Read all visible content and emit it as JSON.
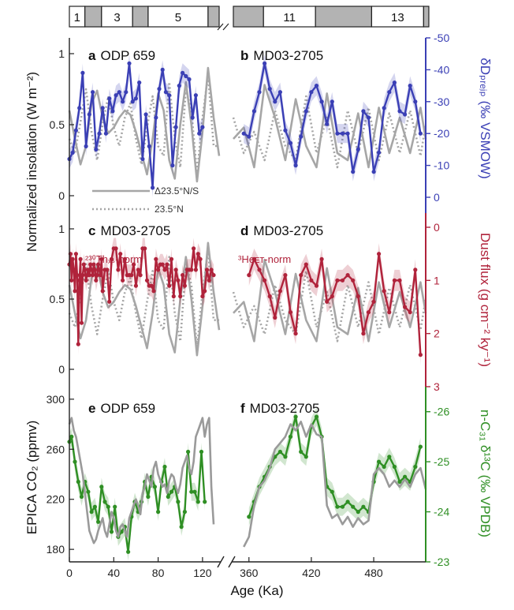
{
  "figure": {
    "x_axis_label": "Age (Ka)",
    "left_axis_label_top": "Normalized insolation (W m⁻²)",
    "left_axis_label_bottom": "EPICA CO₂ (ppmv)",
    "right_axis_label_top": "δDₚᵣₑⱼₚ (‰ VSMOW)",
    "right_axis_label_mid": "Dust flux (g cm⁻² ky⁻¹)",
    "right_axis_label_bottom": "n-C₃₁ δ¹³C (‰ VPDB)",
    "colors": {
      "insolation": "#a6a6a6",
      "dD": "#3a3fb5",
      "dust": "#b0233b",
      "d13C": "#2f8f24",
      "co2": "#9a9a9a"
    }
  },
  "mis_bar": {
    "left": [
      {
        "label": "1",
        "start": 0,
        "end": 14,
        "shaded": false
      },
      {
        "label": "",
        "start": 14,
        "end": 29,
        "shaded": true
      },
      {
        "label": "3",
        "start": 29,
        "end": 57,
        "shaded": false
      },
      {
        "label": "",
        "start": 57,
        "end": 71,
        "shaded": true
      },
      {
        "label": "5",
        "start": 71,
        "end": 125,
        "shaded": false
      },
      {
        "label": "",
        "start": 125,
        "end": 135,
        "shaded": true
      }
    ],
    "right": [
      {
        "label": "",
        "start": 340,
        "end": 374,
        "shaded": true
      },
      {
        "label": "11",
        "start": 374,
        "end": 424,
        "shaded": false
      },
      {
        "label": "",
        "start": 424,
        "end": 478,
        "shaded": true
      },
      {
        "label": "13",
        "start": 478,
        "end": 528,
        "shaded": false
      },
      {
        "label": "",
        "start": 528,
        "end": 533,
        "shaded": true
      }
    ]
  },
  "panels": {
    "a": {
      "letter": "a",
      "site": "ODP 659"
    },
    "b": {
      "letter": "b",
      "site": "MD03-2705"
    },
    "c": {
      "letter": "c",
      "site": "MD03-2705",
      "note": "²³⁰Thₓₛ-norm"
    },
    "d": {
      "letter": "d",
      "site": "MD03-2705",
      "note": "³Heᴇᴛ-norm"
    },
    "e": {
      "letter": "e",
      "site": "ODP 659"
    },
    "f": {
      "letter": "f",
      "site": "MD03-2705"
    }
  },
  "legend": {
    "solid": "Δ23.5°N/S",
    "dotted": "23.5°N"
  },
  "chart_data": {
    "type": "line",
    "x_axis": {
      "label": "Age (Ka)",
      "left_segment": {
        "range": [
          0,
          135
        ],
        "ticks": [
          0,
          40,
          80,
          120
        ]
      },
      "right_segment": {
        "range": [
          345,
          530
        ],
        "ticks": [
          360,
          420,
          480
        ]
      }
    },
    "insolation_axis": {
      "range": [
        0,
        1
      ],
      "ticks": [
        0,
        0.5,
        1
      ],
      "tick_labels": [
        "0",
        "0.5",
        "1"
      ]
    },
    "dD_axis": {
      "range": [
        0,
        -50
      ],
      "ticks": [
        0,
        -10,
        -20,
        -30,
        -40,
        -50
      ]
    },
    "dust_axis": {
      "range": [
        3,
        0
      ],
      "ticks": [
        0,
        1,
        2,
        3
      ]
    },
    "co2_axis": {
      "range": [
        170,
        310
      ],
      "ticks": [
        180,
        220,
        260,
        300
      ]
    },
    "d13C_axis": {
      "range": [
        -23,
        -26.5
      ],
      "ticks": [
        -23,
        -24,
        -25,
        -26
      ]
    },
    "insolation_solid": {
      "name": "Δ23.5°N/S",
      "left": {
        "x": [
          0,
          5,
          10,
          15,
          20,
          25,
          30,
          35,
          40,
          45,
          50,
          55,
          60,
          65,
          70,
          75,
          80,
          85,
          90,
          95,
          100,
          105,
          110,
          115,
          120,
          125,
          130,
          135
        ],
        "y": [
          0.6,
          0.4,
          0.22,
          0.35,
          0.65,
          0.74,
          0.55,
          0.44,
          0.48,
          0.55,
          0.6,
          0.57,
          0.45,
          0.3,
          0.15,
          0.4,
          0.72,
          0.6,
          0.25,
          0.12,
          0.5,
          0.8,
          0.5,
          0.1,
          0.45,
          0.9,
          0.55,
          0.28
        ]
      },
      "right": {
        "x": [
          345,
          355,
          365,
          375,
          385,
          395,
          405,
          415,
          425,
          435,
          445,
          455,
          465,
          475,
          485,
          495,
          505,
          515,
          525,
          530
        ],
        "y": [
          0.4,
          0.48,
          0.2,
          0.78,
          0.55,
          0.25,
          0.68,
          0.35,
          0.2,
          0.72,
          0.3,
          0.25,
          0.58,
          0.2,
          0.62,
          0.3,
          0.55,
          0.3,
          0.62,
          0.4
        ]
      }
    },
    "insolation_dotted": {
      "name": "23.5°N",
      "left": {
        "x": [
          0,
          5,
          10,
          15,
          20,
          25,
          30,
          35,
          40,
          45,
          50,
          55,
          60,
          65,
          70,
          75,
          80,
          85,
          90,
          95,
          100,
          105,
          110,
          115,
          120,
          125,
          130,
          135
        ],
        "y": [
          0.4,
          0.3,
          0.52,
          0.75,
          0.45,
          0.25,
          0.5,
          0.7,
          0.48,
          0.35,
          0.55,
          0.65,
          0.4,
          0.22,
          0.48,
          0.7,
          0.35,
          0.28,
          0.8,
          0.4,
          0.2,
          0.75,
          0.6,
          0.15,
          0.55,
          0.85,
          0.35,
          0.35
        ]
      },
      "right": {
        "x": [
          345,
          355,
          365,
          375,
          385,
          395,
          405,
          415,
          425,
          435,
          445,
          455,
          465,
          475,
          485,
          495,
          505,
          515,
          525,
          530
        ],
        "y": [
          0.55,
          0.3,
          0.45,
          0.25,
          0.6,
          0.35,
          0.25,
          0.7,
          0.3,
          0.55,
          0.2,
          0.6,
          0.3,
          0.62,
          0.25,
          0.58,
          0.3,
          0.6,
          0.28,
          0.5
        ]
      }
    },
    "series": [
      {
        "panel": "a",
        "axis": "dD",
        "x": [
          0,
          3,
          6,
          9,
          12,
          15,
          18,
          21,
          24,
          27,
          30,
          33,
          36,
          39,
          42,
          45,
          48,
          51,
          54,
          57,
          60,
          63,
          66,
          69,
          72,
          75,
          78,
          81,
          84,
          87,
          90,
          93,
          96,
          99,
          102,
          105,
          108,
          111,
          114,
          117,
          120
        ],
        "y": [
          -12,
          -14,
          -21,
          -28,
          -39,
          -16,
          -26,
          -33,
          -15,
          -20,
          -28,
          -20,
          -31,
          -27,
          -32,
          -33,
          -30,
          -33,
          -42,
          -30,
          -31,
          -36,
          -12,
          -26,
          -16,
          -3,
          -25,
          -34,
          -40,
          -33,
          -32,
          -10,
          -22,
          -35,
          -39,
          -38,
          -37,
          -25,
          -32,
          -20,
          -22
        ]
      },
      {
        "panel": "b",
        "axis": "dD",
        "x": [
          355,
          360,
          365,
          370,
          375,
          380,
          385,
          390,
          395,
          400,
          405,
          410,
          415,
          420,
          425,
          430,
          435,
          440,
          445,
          450,
          455,
          460,
          465,
          470,
          475,
          480,
          485,
          490,
          495,
          500,
          505,
          510,
          515,
          520,
          525
        ],
        "y": [
          -20,
          -19,
          -27,
          -33,
          -42,
          -34,
          -30,
          -33,
          -21,
          -17,
          -10,
          -19,
          -27,
          -33,
          -35,
          -30,
          -23,
          -30,
          -20,
          -20,
          -20,
          -8,
          -15,
          -27,
          -25,
          -8,
          -14,
          -28,
          -33,
          -36,
          -27,
          -26,
          -35,
          -30,
          -20
        ]
      },
      {
        "panel": "c",
        "axis": "dust",
        "x": [
          0,
          1,
          2,
          3,
          4,
          5,
          6,
          7,
          8,
          9,
          10,
          11,
          12,
          13,
          14,
          15,
          16,
          17,
          18,
          19,
          20,
          21,
          22,
          23,
          24,
          25,
          26,
          27,
          28,
          29,
          30,
          32,
          34,
          36,
          38,
          40,
          42,
          44,
          46,
          48,
          50,
          52,
          54,
          56,
          58,
          60,
          62,
          64,
          66,
          68,
          70,
          72,
          74,
          76,
          78,
          80,
          82,
          84,
          86,
          88,
          90,
          92,
          94,
          96,
          98,
          100,
          102,
          104,
          106,
          108,
          110,
          112,
          114,
          116,
          118,
          120,
          122,
          124,
          126,
          128,
          130
        ],
        "y": [
          0.7,
          0.5,
          1.0,
          0.6,
          0.8,
          1.2,
          0.5,
          0.9,
          2.2,
          1.0,
          0.6,
          1.8,
          0.9,
          0.7,
          0.8,
          1.0,
          0.9,
          0.8,
          0.9,
          0.7,
          0.8,
          0.9,
          0.7,
          0.8,
          1.0,
          0.9,
          0.7,
          0.8,
          0.9,
          0.6,
          1.2,
          0.8,
          0.8,
          1.4,
          0.6,
          0.4,
          0.4,
          0.8,
          0.5,
          1.0,
          0.6,
          0.9,
          0.9,
          0.9,
          0.7,
          1.1,
          0.8,
          0.9,
          0.4,
          0.4,
          1.0,
          1.1,
          1.1,
          1.2,
          0.6,
          0.8,
          0.7,
          0.7,
          0.8,
          0.7,
          1.1,
          0.6,
          1.3,
          0.8,
          1.0,
          1.3,
          0.9,
          1.1,
          0.8,
          0.8,
          0.8,
          0.4,
          0.8,
          0.5,
          0.6,
          1.3,
          1.2,
          0.8,
          1.0,
          0.8,
          0.9
        ]
      },
      {
        "panel": "d",
        "axis": "dust",
        "x": [
          360,
          365,
          370,
          375,
          380,
          385,
          390,
          395,
          400,
          405,
          410,
          415,
          420,
          425,
          430,
          435,
          440,
          445,
          450,
          455,
          460,
          465,
          470,
          475,
          480,
          485,
          490,
          495,
          500,
          505,
          510,
          515,
          520,
          525
        ],
        "y": [
          0.9,
          0.6,
          0.8,
          1.0,
          1.3,
          1.7,
          1.2,
          0.9,
          1.6,
          2.0,
          0.9,
          0.7,
          1.0,
          1.1,
          0.6,
          1.4,
          1.3,
          1.0,
          1.0,
          0.9,
          1.0,
          1.3,
          2.0,
          1.6,
          1.4,
          0.5,
          1.2,
          1.6,
          1.0,
          1.0,
          1.5,
          1.6,
          0.8,
          2.4
        ]
      },
      {
        "panel": "e",
        "axis": "d13C",
        "x": [
          0,
          2,
          5,
          8,
          11,
          14,
          17,
          20,
          23,
          26,
          29,
          32,
          35,
          38,
          41,
          44,
          47,
          50,
          53,
          56,
          59,
          62,
          65,
          68,
          71,
          74,
          77,
          80,
          83,
          86,
          89,
          92,
          95,
          98,
          101,
          104,
          107,
          110,
          113,
          116,
          119,
          122
        ],
        "y": [
          -25.4,
          -25.5,
          -25.0,
          -24.6,
          -24.3,
          -24.6,
          -24.4,
          -24.0,
          -24.1,
          -23.8,
          -24.5,
          -24.2,
          -24.1,
          -23.6,
          -24.1,
          -23.5,
          -23.6,
          -23.7,
          -23.2,
          -23.9,
          -24.2,
          -24.0,
          -24.2,
          -24.6,
          -24.3,
          -24.7,
          -24.5,
          -24.0,
          -24.6,
          -24.9,
          -24.3,
          -24.4,
          -24.5,
          -24.2,
          -23.7,
          -24.0,
          -25.2,
          -24.4,
          -24.4,
          -24.2,
          -25.2,
          -24.2
        ]
      },
      {
        "panel": "f",
        "axis": "d13C",
        "x": [
          360,
          365,
          370,
          375,
          380,
          385,
          390,
          395,
          400,
          405,
          410,
          415,
          420,
          425,
          430,
          435,
          440,
          445,
          450,
          455,
          460,
          465,
          470,
          475,
          480,
          485,
          490,
          495,
          500,
          505,
          510,
          515,
          520,
          525
        ],
        "y": [
          -23.9,
          -24.2,
          -24.5,
          -24.7,
          -24.9,
          -25.1,
          -25.2,
          -25.1,
          -25.5,
          -25.9,
          -25.2,
          -25.1,
          -25.7,
          -25.9,
          -25.5,
          -24.5,
          -24.4,
          -24.1,
          -24.1,
          -24.2,
          -24.1,
          -24.0,
          -24.1,
          -24.0,
          -24.6,
          -25.0,
          -24.9,
          -25.1,
          -24.9,
          -24.6,
          -24.7,
          -24.6,
          -24.9,
          -25.3
        ]
      },
      {
        "panel": "e",
        "axis": "co2",
        "x": [
          0,
          2,
          4,
          6,
          8,
          10,
          12,
          14,
          16,
          18,
          20,
          22,
          24,
          26,
          28,
          30,
          32,
          34,
          36,
          38,
          40,
          42,
          44,
          46,
          48,
          50,
          52,
          54,
          56,
          58,
          60,
          62,
          64,
          66,
          68,
          70,
          72,
          74,
          76,
          78,
          80,
          82,
          84,
          86,
          88,
          90,
          92,
          94,
          96,
          98,
          100,
          102,
          104,
          106,
          108,
          110,
          112,
          114,
          116,
          118,
          120,
          122,
          124,
          126,
          128,
          130
        ],
        "y": [
          280,
          285,
          275,
          270,
          260,
          250,
          240,
          225,
          210,
          195,
          190,
          185,
          188,
          195,
          200,
          205,
          195,
          190,
          200,
          210,
          205,
          195,
          190,
          198,
          200,
          195,
          190,
          205,
          210,
          215,
          220,
          215,
          208,
          225,
          230,
          240,
          235,
          230,
          245,
          250,
          240,
          235,
          230,
          232,
          225,
          235,
          240,
          238,
          230,
          225,
          232,
          245,
          250,
          255,
          245,
          240,
          250,
          270,
          275,
          280,
          285,
          270,
          280,
          285,
          230,
          200
        ]
      },
      {
        "panel": "f",
        "axis": "co2",
        "x": [
          355,
          360,
          365,
          370,
          375,
          380,
          385,
          390,
          395,
          400,
          405,
          410,
          415,
          420,
          425,
          430,
          435,
          440,
          445,
          450,
          455,
          460,
          465,
          470,
          475,
          480,
          485,
          490,
          495,
          500,
          505,
          510,
          515,
          520,
          525,
          530
        ],
        "y": [
          182,
          190,
          215,
          230,
          235,
          245,
          260,
          265,
          270,
          280,
          275,
          282,
          270,
          280,
          272,
          270,
          215,
          205,
          208,
          200,
          206,
          198,
          205,
          200,
          203,
          240,
          245,
          240,
          230,
          235,
          230,
          236,
          230,
          240,
          245,
          228
        ]
      }
    ]
  }
}
